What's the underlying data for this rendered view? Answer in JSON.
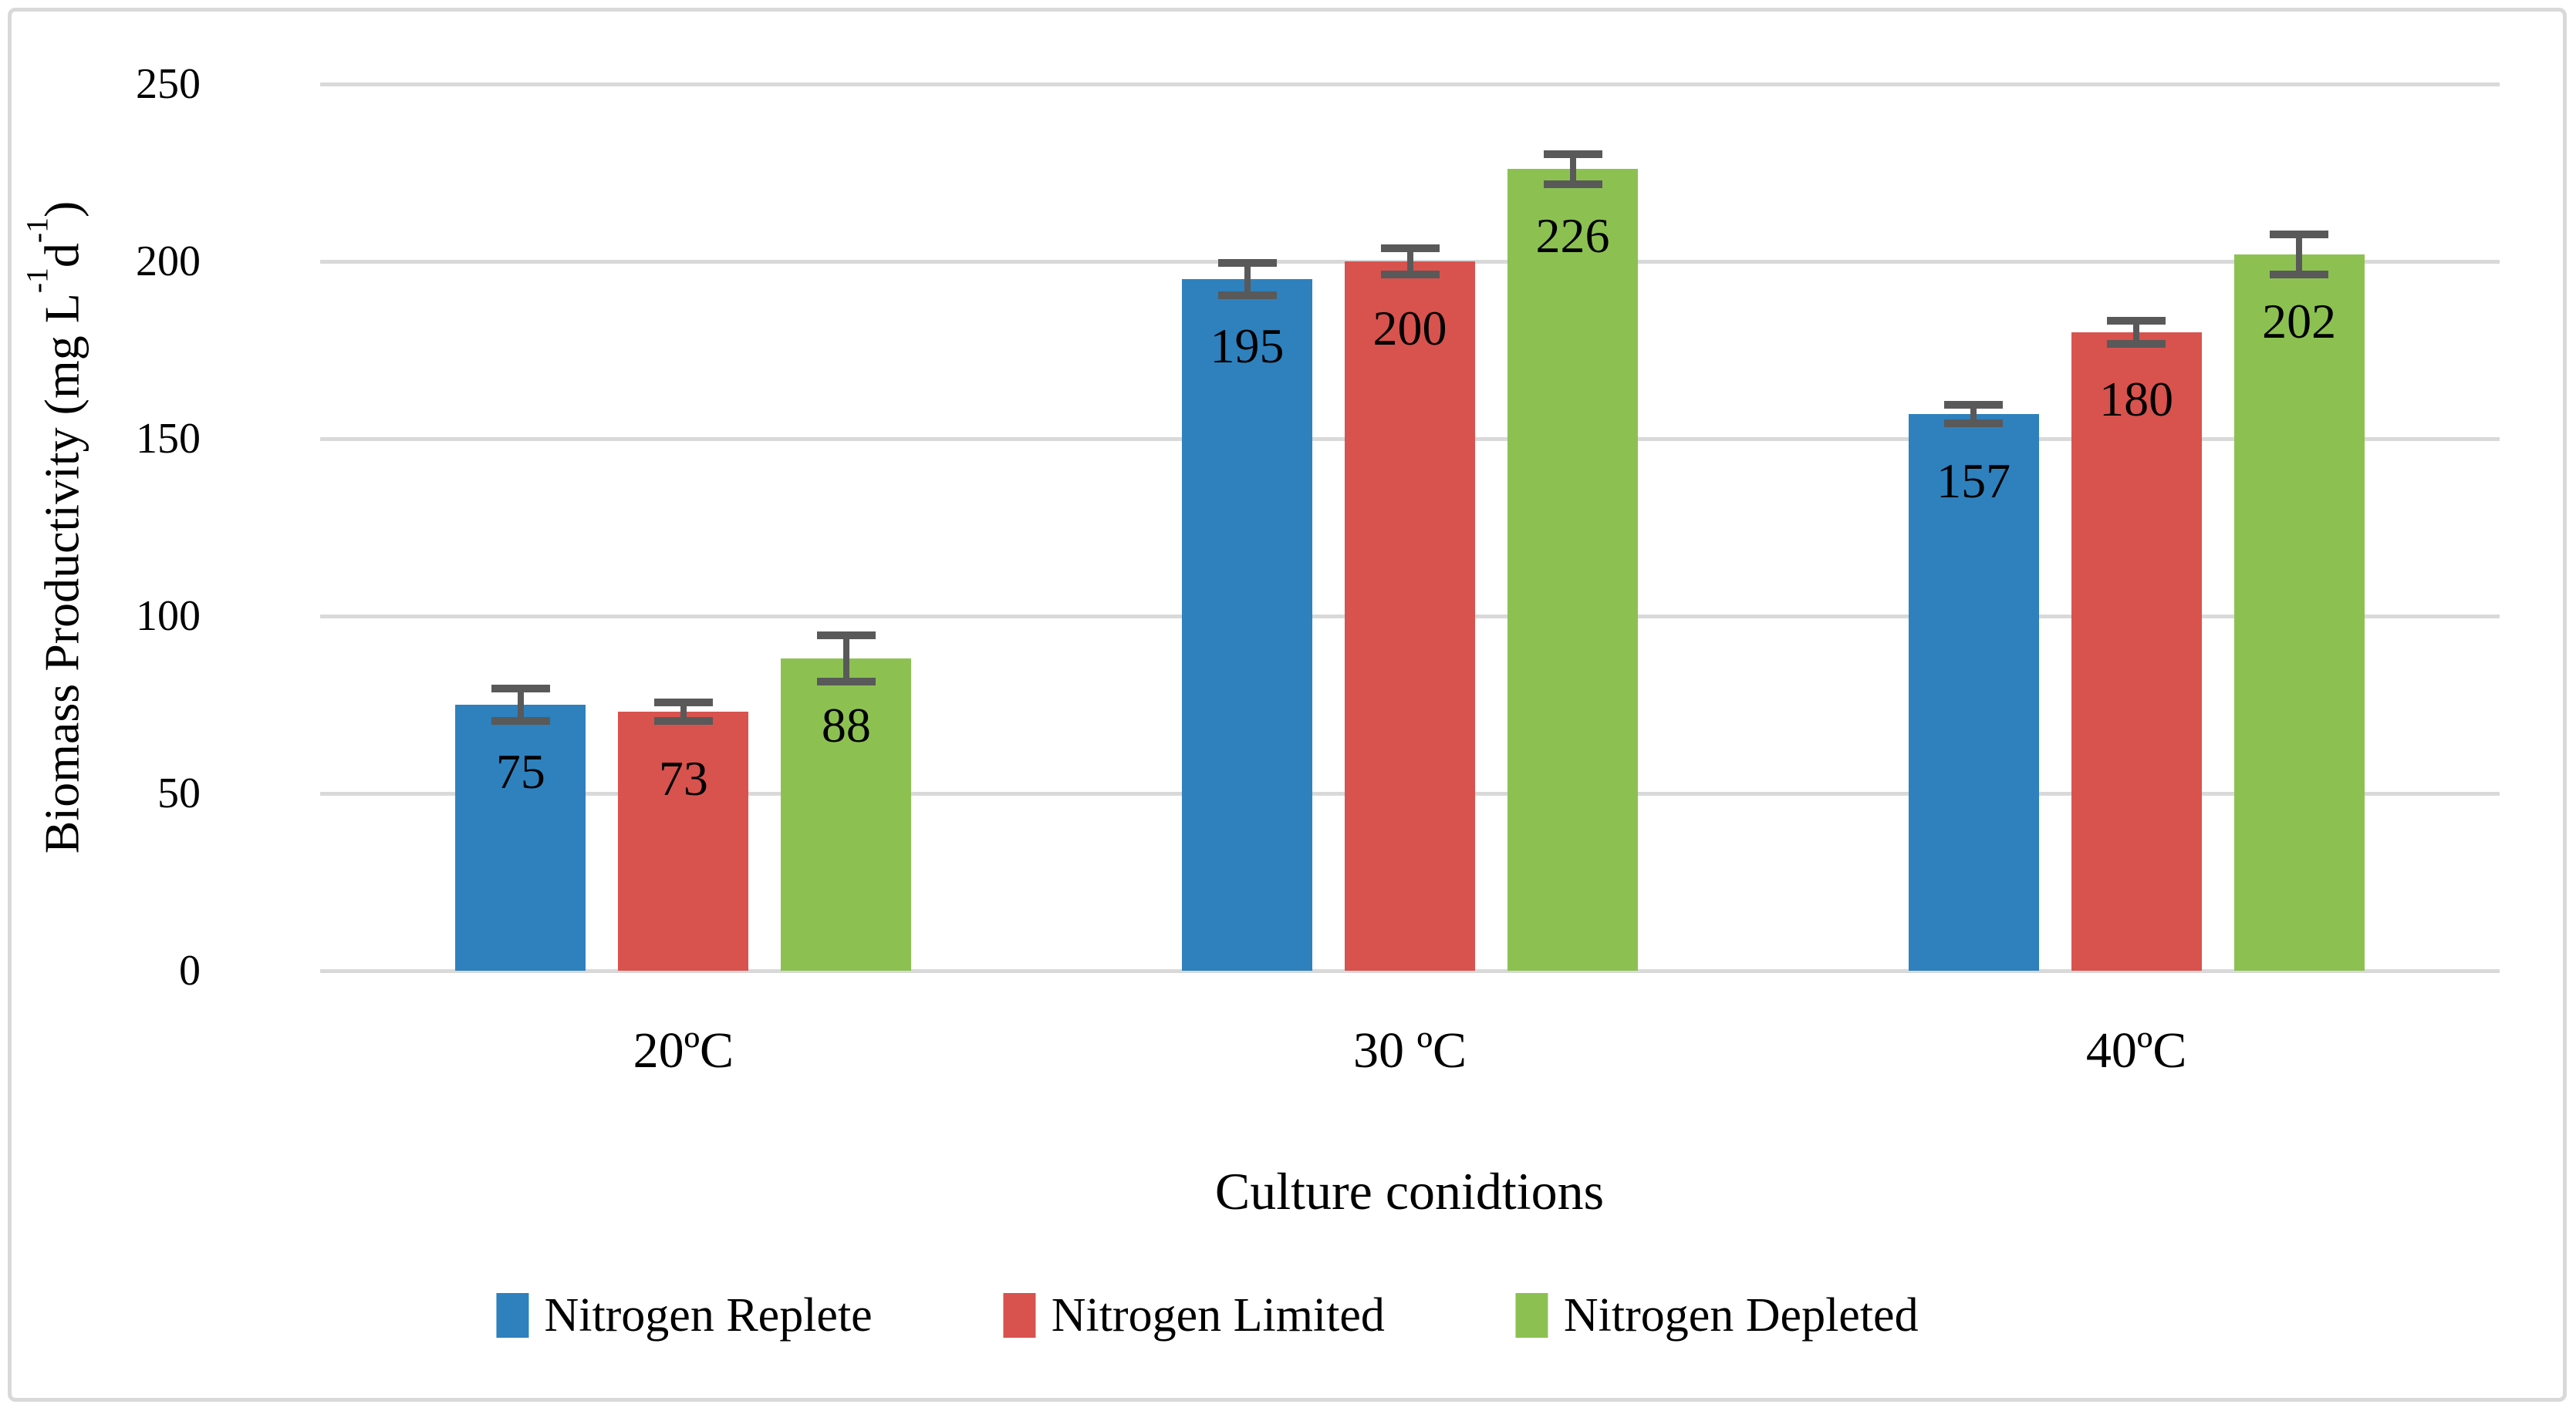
{
  "chart_data": {
    "type": "bar",
    "title": "",
    "xlabel": "Culture conidtions",
    "ylabel": "Biomass Productivity (mg L-1d-1)",
    "ylabel_parts": [
      {
        "text": "Biomass Productivity (mg L",
        "superscript": false
      },
      {
        "text": "-1",
        "superscript": true
      },
      {
        "text": "d",
        "superscript": false
      },
      {
        "text": "-1",
        "superscript": true
      },
      {
        "text": ")",
        "superscript": false
      }
    ],
    "categories": [
      "20ºC",
      "30 ºC",
      "40ºC"
    ],
    "series": [
      {
        "name": "Nitrogen Replete",
        "color": "#2E81BD",
        "values": [
          75,
          195,
          157
        ],
        "errors": [
          4.6,
          4.5,
          2.6
        ]
      },
      {
        "name": "Nitrogen Limited",
        "color": "#D8524E",
        "values": [
          73,
          200,
          180
        ],
        "errors": [
          2.6,
          3.7,
          3.3
        ]
      },
      {
        "name": "Nitrogen Depleted",
        "color": "#8CC152",
        "values": [
          88,
          226,
          202
        ],
        "errors": [
          6.5,
          4.2,
          5.6
        ]
      }
    ],
    "ylim": [
      0,
      250
    ],
    "yticks": [
      0,
      50,
      100,
      150,
      200,
      250
    ],
    "grid": true,
    "data_labels": true,
    "legend_position": "bottom",
    "error_bars": true
  },
  "styles": {
    "background": "#FFFFFF",
    "gridline_color": "#D9D9D9",
    "chart_border_color": "#D9D9D9",
    "error_bar_color": "#595959",
    "text_color": "#000000"
  }
}
